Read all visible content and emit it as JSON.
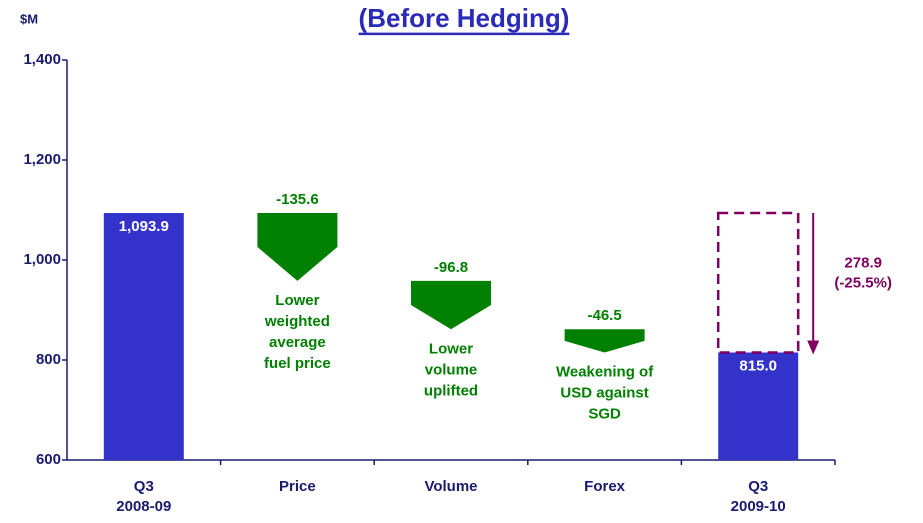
{
  "chart_data": {
    "type": "waterfall",
    "title": "(Before Hedging)",
    "y_unit_label": "$M",
    "categories": [
      "Q3\n2008-09",
      "Price",
      "Volume",
      "Forex",
      "Q3\n2009-10"
    ],
    "values": [
      1093.9,
      -135.6,
      -96.8,
      -46.5,
      815.0
    ],
    "value_labels": [
      "1,093.9",
      "-135.6",
      "-96.8",
      "-46.5",
      "815.0"
    ],
    "is_total": [
      true,
      false,
      false,
      false,
      true
    ],
    "annotations": [
      null,
      "Lower\nweighted\naverage\nfuel price",
      "Lower\nvolume\nuplifted",
      "Weakening of\nUSD against\nSGD",
      null
    ],
    "change_label": [
      "278.9",
      "(-25.5%)"
    ],
    "total_color": "#3333cc",
    "decrease_color": "#008000",
    "change_color": "#800060",
    "ylim": [
      600,
      1400
    ],
    "yticks": [
      {
        "value": 600,
        "label": "600"
      },
      {
        "value": 800,
        "label": "800"
      },
      {
        "value": 1000,
        "label": "1,000"
      },
      {
        "value": 1200,
        "label": "1,200"
      },
      {
        "value": 1400,
        "label": "1,400"
      }
    ]
  }
}
